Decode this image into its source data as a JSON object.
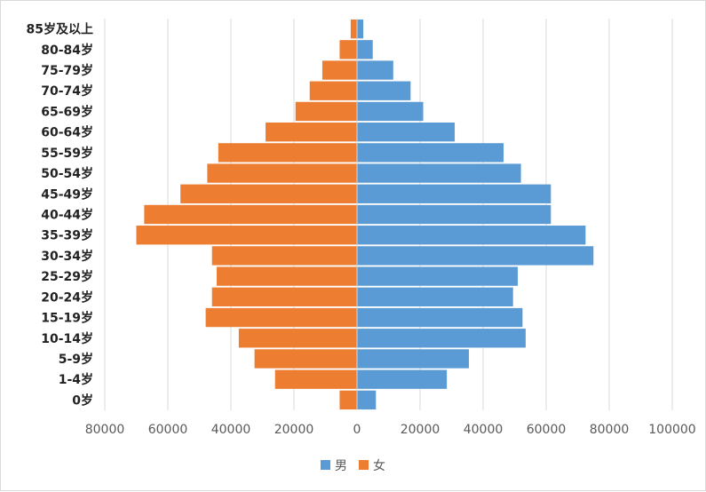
{
  "chart_data": {
    "type": "bar",
    "orientation": "horizontal",
    "categories": [
      "0岁",
      "1-4岁",
      "5-9岁",
      "10-14岁",
      "15-19岁",
      "20-24岁",
      "25-29岁",
      "30-34岁",
      "35-39岁",
      "40-44岁",
      "45-49岁",
      "50-54岁",
      "55-59岁",
      "60-64岁",
      "65-69岁",
      "70-74岁",
      "75-79岁",
      "80-84岁",
      "85岁及以上"
    ],
    "series": [
      {
        "name": "男",
        "color": "#5b9bd5",
        "values": [
          6000,
          28500,
          35500,
          53500,
          52500,
          49500,
          51000,
          75000,
          72500,
          61500,
          61500,
          52000,
          46500,
          31000,
          21000,
          17000,
          11500,
          5000,
          2000
        ]
      },
      {
        "name": "女",
        "color": "#ed7d31",
        "values": [
          5500,
          26000,
          32500,
          37500,
          48000,
          46000,
          44500,
          46000,
          70000,
          67500,
          56000,
          47500,
          44000,
          29000,
          19500,
          15000,
          11000,
          5500,
          2000
        ]
      }
    ],
    "x_ticks": [
      "80000",
      "60000",
      "40000",
      "20000",
      "0",
      "20000",
      "40000",
      "60000",
      "80000",
      "100000"
    ],
    "xlim": [
      -80000,
      100000
    ],
    "grid": true,
    "legend_position": "bottom"
  }
}
